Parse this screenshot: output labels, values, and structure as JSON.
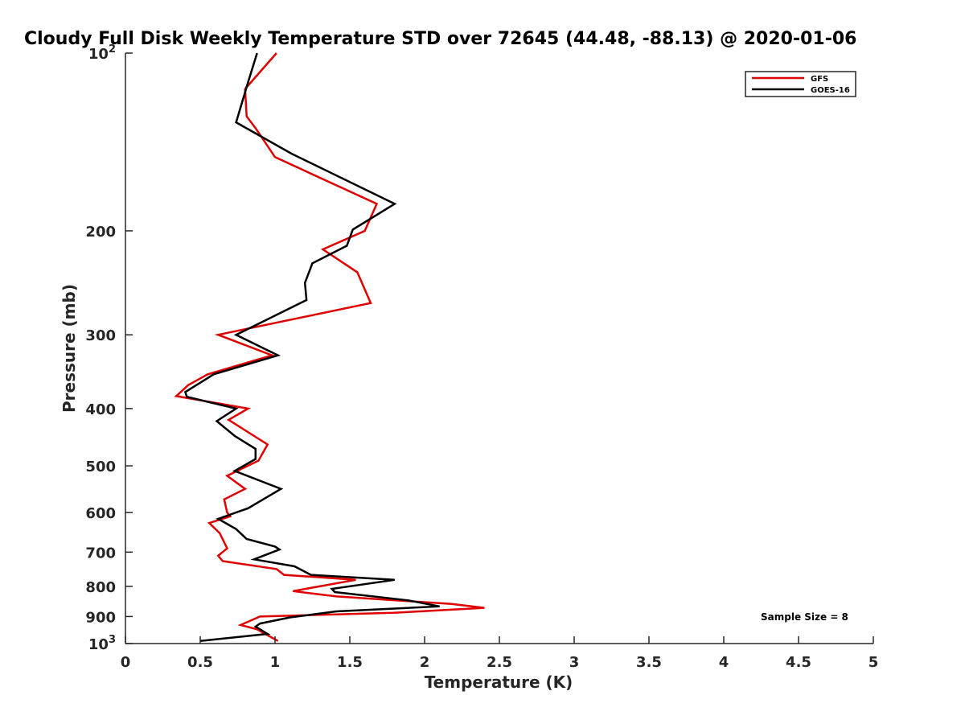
{
  "chart_data": {
    "type": "line",
    "title": "Cloudy Full Disk Weekly Temperature STD over 72645 (44.48, -88.13) @ 2020-01-06",
    "xlabel": "Temperature (K)",
    "ylabel": "Pressure (mb)",
    "xlim": [
      0,
      5
    ],
    "ylim": [
      100,
      1000
    ],
    "yscale": "log",
    "y_reversed": true,
    "grid": false,
    "legend_position": "top-right",
    "x_ticks": [
      "0",
      "0.5",
      "1",
      "1.5",
      "2",
      "2.5",
      "3",
      "3.5",
      "4",
      "4.5",
      "5"
    ],
    "y_ticks": [
      {
        "value": 100,
        "base": "10",
        "exp": "2"
      },
      {
        "value": 200,
        "label": "200"
      },
      {
        "value": 300,
        "label": "300"
      },
      {
        "value": 400,
        "label": "400"
      },
      {
        "value": 500,
        "label": "500"
      },
      {
        "value": 600,
        "label": "600"
      },
      {
        "value": 700,
        "label": "700"
      },
      {
        "value": 800,
        "label": "800"
      },
      {
        "value": 900,
        "label": "900"
      },
      {
        "value": 1000,
        "base": "10",
        "exp": "3"
      }
    ],
    "annotation": "Sample Size = 8",
    "series": [
      {
        "name": "GFS",
        "color": "#e00000",
        "points": [
          [
            1.01,
            100
          ],
          [
            0.8,
            115
          ],
          [
            0.81,
            128
          ],
          [
            0.87,
            134
          ],
          [
            1.0,
            150
          ],
          [
            1.68,
            180
          ],
          [
            1.6,
            200
          ],
          [
            1.32,
            215
          ],
          [
            1.55,
            235
          ],
          [
            1.64,
            265
          ],
          [
            0.62,
            300
          ],
          [
            0.98,
            325
          ],
          [
            0.55,
            350
          ],
          [
            0.42,
            365
          ],
          [
            0.34,
            381
          ],
          [
            0.82,
            400
          ],
          [
            0.69,
            418
          ],
          [
            0.95,
            460
          ],
          [
            0.89,
            490
          ],
          [
            0.68,
            520
          ],
          [
            0.8,
            547
          ],
          [
            0.66,
            570
          ],
          [
            0.68,
            600
          ],
          [
            0.7,
            609
          ],
          [
            0.56,
            625
          ],
          [
            0.63,
            650
          ],
          [
            0.68,
            690
          ],
          [
            0.62,
            710
          ],
          [
            0.65,
            725
          ],
          [
            1.01,
            748
          ],
          [
            1.06,
            765
          ],
          [
            1.54,
            780
          ],
          [
            1.12,
            815
          ],
          [
            1.41,
            832
          ],
          [
            2.18,
            857
          ],
          [
            2.4,
            870
          ],
          [
            1.79,
            887
          ],
          [
            0.9,
            900
          ],
          [
            0.77,
            930
          ],
          [
            0.88,
            946
          ],
          [
            0.95,
            968
          ],
          [
            1.02,
            990
          ]
        ]
      },
      {
        "name": "GOES-16",
        "color": "#000000",
        "points": [
          [
            0.88,
            100
          ],
          [
            0.82,
            112
          ],
          [
            0.74,
            131
          ],
          [
            1.11,
            148
          ],
          [
            1.8,
            180
          ],
          [
            1.52,
            199
          ],
          [
            1.48,
            212
          ],
          [
            1.25,
            227
          ],
          [
            1.2,
            245
          ],
          [
            1.21,
            262
          ],
          [
            0.74,
            300
          ],
          [
            1.02,
            325
          ],
          [
            0.59,
            350
          ],
          [
            0.4,
            375
          ],
          [
            0.41,
            382
          ],
          [
            0.74,
            400
          ],
          [
            0.61,
            420
          ],
          [
            0.73,
            445
          ],
          [
            0.87,
            468
          ],
          [
            0.87,
            487
          ],
          [
            0.73,
            510
          ],
          [
            1.04,
            547
          ],
          [
            0.82,
            590
          ],
          [
            0.62,
            615
          ],
          [
            0.74,
            640
          ],
          [
            0.81,
            665
          ],
          [
            1.0,
            685
          ],
          [
            1.03,
            693
          ],
          [
            0.86,
            720
          ],
          [
            1.13,
            740
          ],
          [
            1.24,
            765
          ],
          [
            1.8,
            780
          ],
          [
            1.38,
            808
          ],
          [
            1.4,
            818
          ],
          [
            1.89,
            845
          ],
          [
            2.1,
            865
          ],
          [
            1.41,
            882
          ],
          [
            1.1,
            903
          ],
          [
            0.9,
            925
          ],
          [
            0.87,
            936
          ],
          [
            0.95,
            963
          ],
          [
            0.5,
            990
          ]
        ]
      }
    ]
  }
}
